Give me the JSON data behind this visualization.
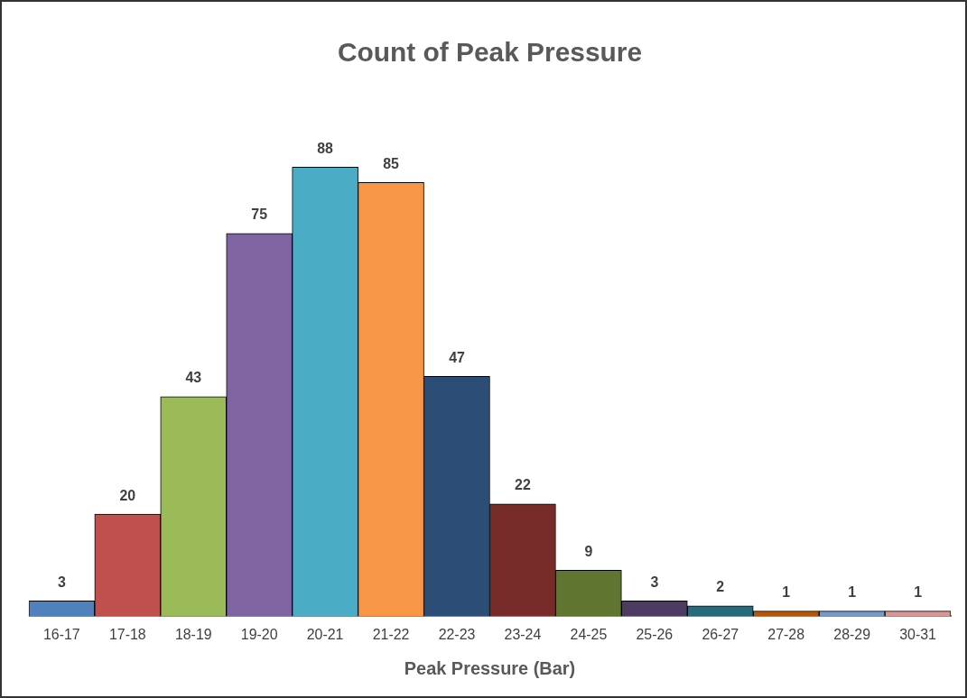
{
  "chart_data": {
    "type": "bar",
    "title": "Count of Peak Pressure",
    "xlabel": "Peak Pressure (Bar)",
    "categories": [
      "16-17",
      "17-18",
      "18-19",
      "19-20",
      "20-21",
      "21-22",
      "22-23",
      "23-24",
      "24-25",
      "25-26",
      "26-27",
      "27-28",
      "28-29",
      "30-31"
    ],
    "values": [
      3,
      20,
      43,
      75,
      88,
      85,
      47,
      22,
      9,
      3,
      2,
      1,
      1,
      1
    ],
    "colors": [
      "#4f81bd",
      "#c0504d",
      "#9bbb59",
      "#8064a2",
      "#4bacc6",
      "#f79646",
      "#2c4d75",
      "#772c2a",
      "#5f7530",
      "#4d3b62",
      "#276a7c",
      "#b65708",
      "#729aca",
      "#d99694"
    ],
    "data_labels": true,
    "grid": false,
    "legend": false
  }
}
